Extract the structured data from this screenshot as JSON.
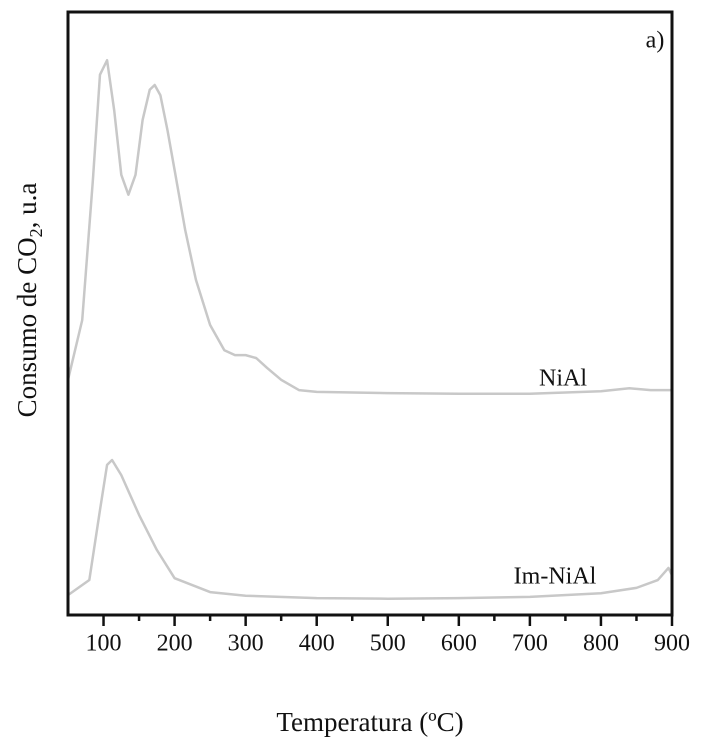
{
  "chart_data": {
    "type": "line",
    "xlabel": "Temperatura (ºC)",
    "ylabel_parts": [
      "Consumo de CO",
      "2",
      ", u.a"
    ],
    "annotations": [
      "a)",
      "NiAl",
      "Im-NiAl"
    ],
    "xlim": [
      50,
      900
    ],
    "xticks": [
      100,
      200,
      300,
      400,
      500,
      600,
      700,
      800,
      900
    ],
    "minor_xticks": [
      150,
      250,
      350,
      450,
      550,
      650,
      750,
      850
    ],
    "ylim": [
      0,
      100
    ],
    "grid": false,
    "series": [
      {
        "name": "NiAl",
        "color": "#c8c8c8",
        "x": [
          50,
          70,
          85,
          95,
          105,
          115,
          125,
          135,
          145,
          155,
          165,
          172,
          180,
          190,
          200,
          215,
          230,
          250,
          270,
          285,
          300,
          315,
          330,
          350,
          375,
          400,
          500,
          600,
          700,
          800,
          840,
          870,
          900
        ],
        "values": [
          39.0,
          48.9,
          72.1,
          89.6,
          92.0,
          83.7,
          73.0,
          69.7,
          73.0,
          82.1,
          87.1,
          87.9,
          86.2,
          80.4,
          73.8,
          63.8,
          55.6,
          48.1,
          43.9,
          43.1,
          43.1,
          42.6,
          41.0,
          39.0,
          37.3,
          37.0,
          36.8,
          36.7,
          36.7,
          37.1,
          37.6,
          37.3,
          37.3
        ]
      },
      {
        "name": "Im-NiAl",
        "color": "#c8c8c8",
        "x": [
          50,
          80,
          95,
          105,
          112,
          125,
          150,
          175,
          200,
          250,
          300,
          400,
          500,
          600,
          700,
          800,
          850,
          880,
          895,
          900
        ],
        "values": [
          3.3,
          5.8,
          17.4,
          24.9,
          25.7,
          23.2,
          16.6,
          10.8,
          6.1,
          3.8,
          3.2,
          2.8,
          2.7,
          2.8,
          3.0,
          3.6,
          4.5,
          5.8,
          7.8,
          6.6
        ]
      }
    ]
  }
}
